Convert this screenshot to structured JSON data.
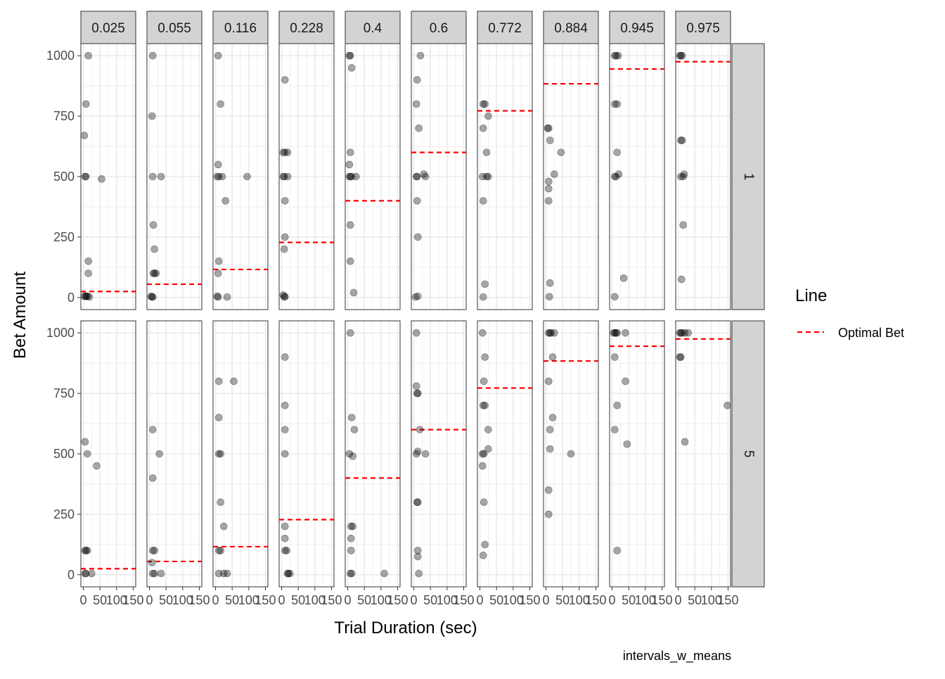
{
  "chart_data": {
    "type": "scatter",
    "facet_cols": [
      "0.025",
      "0.055",
      "0.116",
      "0.228",
      "0.4",
      "0.6",
      "0.772",
      "0.884",
      "0.945",
      "0.975"
    ],
    "facet_rows": [
      "1",
      "5"
    ],
    "xlabel": "Trial Duration (sec)",
    "ylabel": "Bet Amount",
    "xlim": [
      0,
      150
    ],
    "ylim": [
      0,
      1000
    ],
    "x_ticks": [
      0,
      50,
      100,
      150
    ],
    "x_tick_labels": [
      "0",
      "50",
      "100",
      "150"
    ],
    "y_ticks": [
      0,
      250,
      500,
      750,
      1000
    ],
    "y_tick_labels": [
      "0",
      "250",
      "500",
      "750",
      "1000"
    ],
    "grid": true,
    "legend": {
      "title": "Line",
      "position": "right",
      "entries": [
        {
          "label": "Optimal Bet",
          "color": "#ff0000",
          "style": "dashed"
        }
      ]
    },
    "caption": "intervals_w_means",
    "colors": {
      "point": "#000000",
      "point_opacity": 0.35,
      "optimal_line": "#ff0000",
      "strip_fill": "#d3d3d3",
      "grid": "#ebebeb"
    },
    "optimal_bet": [
      25,
      55,
      116,
      228,
      400,
      600,
      772,
      884,
      945,
      975
    ],
    "panels": {
      "1": [
        [
          [
            15,
            1000
          ],
          [
            8,
            800
          ],
          [
            3,
            670
          ],
          [
            5,
            500
          ],
          [
            8,
            500
          ],
          [
            55,
            490
          ],
          [
            15,
            150
          ],
          [
            15,
            100
          ],
          [
            3,
            5
          ],
          [
            6,
            5
          ],
          [
            10,
            5
          ],
          [
            12,
            5
          ],
          [
            18,
            2
          ]
        ],
        [
          [
            10,
            1000
          ],
          [
            8,
            750
          ],
          [
            10,
            500
          ],
          [
            35,
            500
          ],
          [
            12,
            300
          ],
          [
            15,
            200
          ],
          [
            12,
            100
          ],
          [
            15,
            100
          ],
          [
            20,
            100
          ],
          [
            5,
            5
          ],
          [
            8,
            2
          ],
          [
            10,
            2
          ]
        ],
        [
          [
            8,
            1000
          ],
          [
            15,
            800
          ],
          [
            8,
            550
          ],
          [
            5,
            500
          ],
          [
            10,
            500
          ],
          [
            20,
            500
          ],
          [
            95,
            500
          ],
          [
            30,
            400
          ],
          [
            10,
            150
          ],
          [
            8,
            100
          ],
          [
            5,
            5
          ],
          [
            8,
            2
          ],
          [
            35,
            2
          ]
        ],
        [
          [
            10,
            900
          ],
          [
            5,
            600
          ],
          [
            10,
            600
          ],
          [
            18,
            600
          ],
          [
            5,
            500
          ],
          [
            8,
            500
          ],
          [
            18,
            500
          ],
          [
            10,
            400
          ],
          [
            10,
            250
          ],
          [
            8,
            200
          ],
          [
            5,
            10
          ],
          [
            8,
            3
          ],
          [
            10,
            3
          ]
        ],
        [
          [
            5,
            1000
          ],
          [
            8,
            1000
          ],
          [
            12,
            950
          ],
          [
            8,
            600
          ],
          [
            5,
            550
          ],
          [
            5,
            500
          ],
          [
            8,
            500
          ],
          [
            12,
            500
          ],
          [
            25,
            500
          ],
          [
            8,
            300
          ],
          [
            8,
            150
          ],
          [
            18,
            20
          ]
        ],
        [
          [
            20,
            1000
          ],
          [
            10,
            900
          ],
          [
            8,
            800
          ],
          [
            15,
            700
          ],
          [
            8,
            500
          ],
          [
            10,
            500
          ],
          [
            30,
            510
          ],
          [
            35,
            500
          ],
          [
            10,
            400
          ],
          [
            12,
            250
          ],
          [
            12,
            5
          ],
          [
            5,
            2
          ]
        ],
        [
          [
            10,
            800
          ],
          [
            15,
            800
          ],
          [
            25,
            750
          ],
          [
            10,
            700
          ],
          [
            20,
            600
          ],
          [
            8,
            500
          ],
          [
            20,
            500
          ],
          [
            25,
            500
          ],
          [
            10,
            400
          ],
          [
            15,
            55
          ],
          [
            10,
            2
          ]
        ],
        [
          [
            5,
            700
          ],
          [
            8,
            700
          ],
          [
            12,
            650
          ],
          [
            45,
            600
          ],
          [
            25,
            510
          ],
          [
            8,
            480
          ],
          [
            8,
            450
          ],
          [
            8,
            400
          ],
          [
            12,
            60
          ],
          [
            10,
            3
          ]
        ],
        [
          [
            8,
            1000
          ],
          [
            12,
            1000
          ],
          [
            18,
            1000
          ],
          [
            8,
            800
          ],
          [
            15,
            800
          ],
          [
            15,
            600
          ],
          [
            8,
            500
          ],
          [
            12,
            500
          ],
          [
            20,
            510
          ],
          [
            35,
            80
          ],
          [
            8,
            3
          ]
        ],
        [
          [
            5,
            1000
          ],
          [
            8,
            1000
          ],
          [
            12,
            1000
          ],
          [
            8,
            650
          ],
          [
            12,
            650
          ],
          [
            8,
            500
          ],
          [
            15,
            500
          ],
          [
            18,
            510
          ],
          [
            15,
            300
          ],
          [
            10,
            75
          ]
        ]
      ],
      "5": [
        [
          [
            5,
            550
          ],
          [
            12,
            500
          ],
          [
            40,
            450
          ],
          [
            5,
            100
          ],
          [
            8,
            100
          ],
          [
            12,
            100
          ],
          [
            5,
            5
          ],
          [
            8,
            5
          ],
          [
            25,
            5
          ]
        ],
        [
          [
            10,
            600
          ],
          [
            30,
            500
          ],
          [
            10,
            400
          ],
          [
            10,
            100
          ],
          [
            15,
            100
          ],
          [
            8,
            50
          ],
          [
            10,
            5
          ],
          [
            15,
            5
          ],
          [
            35,
            5
          ]
        ],
        [
          [
            10,
            800
          ],
          [
            55,
            800
          ],
          [
            10,
            650
          ],
          [
            10,
            500
          ],
          [
            15,
            500
          ],
          [
            15,
            300
          ],
          [
            25,
            200
          ],
          [
            10,
            100
          ],
          [
            15,
            100
          ],
          [
            10,
            5
          ],
          [
            25,
            5
          ],
          [
            35,
            5
          ]
        ],
        [
          [
            10,
            900
          ],
          [
            10,
            700
          ],
          [
            10,
            600
          ],
          [
            10,
            500
          ],
          [
            10,
            200
          ],
          [
            10,
            150
          ],
          [
            10,
            100
          ],
          [
            15,
            100
          ],
          [
            18,
            5
          ],
          [
            20,
            5
          ],
          [
            25,
            5
          ]
        ],
        [
          [
            8,
            1000
          ],
          [
            12,
            650
          ],
          [
            20,
            600
          ],
          [
            5,
            500
          ],
          [
            15,
            490
          ],
          [
            10,
            200
          ],
          [
            15,
            200
          ],
          [
            10,
            150
          ],
          [
            10,
            100
          ],
          [
            8,
            5
          ],
          [
            12,
            5
          ],
          [
            110,
            5
          ]
        ],
        [
          [
            8,
            1000
          ],
          [
            8,
            780
          ],
          [
            10,
            750
          ],
          [
            12,
            750
          ],
          [
            18,
            600
          ],
          [
            12,
            510
          ],
          [
            8,
            500
          ],
          [
            35,
            500
          ],
          [
            10,
            300
          ],
          [
            12,
            300
          ],
          [
            12,
            100
          ],
          [
            12,
            75
          ],
          [
            15,
            5
          ]
        ],
        [
          [
            8,
            1000
          ],
          [
            15,
            900
          ],
          [
            12,
            800
          ],
          [
            10,
            700
          ],
          [
            15,
            700
          ],
          [
            25,
            600
          ],
          [
            8,
            500
          ],
          [
            12,
            500
          ],
          [
            25,
            520
          ],
          [
            8,
            450
          ],
          [
            12,
            300
          ],
          [
            15,
            125
          ],
          [
            10,
            80
          ]
        ],
        [
          [
            8,
            1000
          ],
          [
            12,
            1000
          ],
          [
            15,
            1000
          ],
          [
            25,
            1000
          ],
          [
            20,
            900
          ],
          [
            8,
            800
          ],
          [
            20,
            650
          ],
          [
            12,
            600
          ],
          [
            12,
            520
          ],
          [
            75,
            500
          ],
          [
            8,
            350
          ],
          [
            8,
            250
          ]
        ],
        [
          [
            5,
            1000
          ],
          [
            8,
            1000
          ],
          [
            12,
            1000
          ],
          [
            15,
            1000
          ],
          [
            40,
            1000
          ],
          [
            8,
            900
          ],
          [
            15,
            700
          ],
          [
            40,
            800
          ],
          [
            8,
            600
          ],
          [
            45,
            540
          ],
          [
            15,
            100
          ]
        ],
        [
          [
            5,
            1000
          ],
          [
            8,
            1000
          ],
          [
            12,
            1000
          ],
          [
            20,
            1000
          ],
          [
            30,
            1000
          ],
          [
            5,
            900
          ],
          [
            8,
            900
          ],
          [
            148,
            700
          ],
          [
            20,
            550
          ]
        ]
      ]
    }
  }
}
